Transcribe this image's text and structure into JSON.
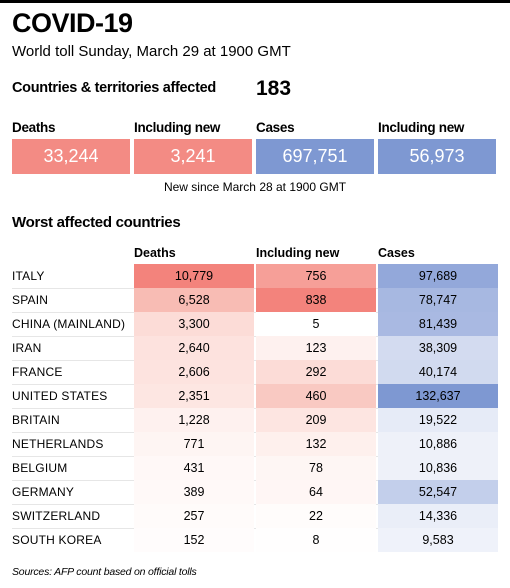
{
  "header": {
    "title": "COVID-19",
    "subtitle": "World toll Sunday, March 29 at 1900 GMT"
  },
  "affected": {
    "label": "Countries & territories affected",
    "value": "183"
  },
  "summary": {
    "labels": {
      "deaths": "Deaths",
      "new_deaths": "Including new",
      "cases": "Cases",
      "new_cases": "Including new"
    },
    "values": {
      "deaths": "33,244",
      "new_deaths": "3,241",
      "cases": "697,751",
      "new_cases": "56,973"
    },
    "note": "New since  March 28 at 1900 GMT"
  },
  "table": {
    "title": "Worst affected countries",
    "columns": {
      "deaths": "Deaths",
      "new": "Including new",
      "cases": "Cases"
    },
    "rows": [
      {
        "country": "ITALY",
        "deaths": "10,779",
        "new": "756",
        "cases": "97,689",
        "d_color": "#f3837c",
        "n_color": "#f69f98",
        "c_color": "#93a8da"
      },
      {
        "country": "SPAIN",
        "deaths": "6,528",
        "new": "838",
        "cases": "78,747",
        "d_color": "#f8bcb4",
        "n_color": "#f3837c",
        "c_color": "#a7b8e1"
      },
      {
        "country": "CHINA (MAINLAND)",
        "deaths": "3,300",
        "new": "5",
        "cases": "81,439",
        "d_color": "#fcdcd7",
        "n_color": "#ffffff",
        "c_color": "#a9b9e2"
      },
      {
        "country": "IRAN",
        "deaths": "2,640",
        "new": "123",
        "cases": "38,309",
        "d_color": "#fde2de",
        "n_color": "#fef1ef",
        "c_color": "#d3dbf0"
      },
      {
        "country": "FRANCE",
        "deaths": "2,606",
        "new": "292",
        "cases": "40,174",
        "d_color": "#fde3df",
        "n_color": "#fcdcd7",
        "c_color": "#d1daef"
      },
      {
        "country": "UNITED STATES",
        "deaths": "2,351",
        "new": "460",
        "cases": "132,637",
        "d_color": "#fde6e2",
        "n_color": "#f9c9c2",
        "c_color": "#7e98d2"
      },
      {
        "country": "BRITAIN",
        "deaths": "1,228",
        "new": "209",
        "cases": "19,522",
        "d_color": "#fef1ef",
        "n_color": "#fde5e1",
        "c_color": "#e6ebf7"
      },
      {
        "country": "NETHERLANDS",
        "deaths": "771",
        "new": "132",
        "cases": "10,886",
        "d_color": "#fef5f3",
        "n_color": "#fef0ed",
        "c_color": "#eef1f9"
      },
      {
        "country": "BELGIUM",
        "deaths": "431",
        "new": "78",
        "cases": "10,836",
        "d_color": "#fff8f7",
        "n_color": "#fef6f4",
        "c_color": "#eef1f9"
      },
      {
        "country": "GERMANY",
        "deaths": "389",
        "new": "64",
        "cases": "52,547",
        "d_color": "#fff9f8",
        "n_color": "#fff6f5",
        "c_color": "#c3cfeb"
      },
      {
        "country": "SWITZERLAND",
        "deaths": "257",
        "new": "22",
        "cases": "14,336",
        "d_color": "#fffbfa",
        "n_color": "#fffcfb",
        "c_color": "#eaeef8"
      },
      {
        "country": "SOUTH KOREA",
        "deaths": "152",
        "new": "8",
        "cases": "9,583",
        "d_color": "#fffcfc",
        "n_color": "#fffefe",
        "c_color": "#eff2fa"
      }
    ]
  },
  "source": "Sources: AFP count based on official tolls"
}
